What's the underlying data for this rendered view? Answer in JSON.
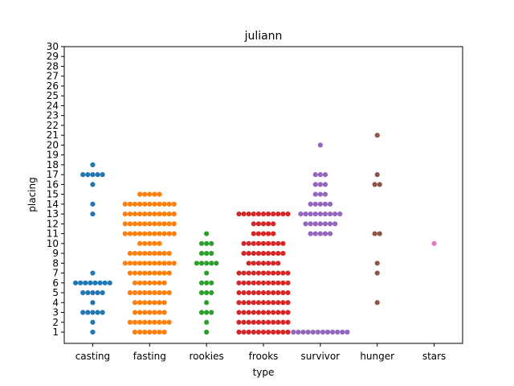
{
  "chart_data": {
    "type": "scatter",
    "title": "juliann",
    "xlabel": "type",
    "ylabel": "placing",
    "ylim": [
      0,
      30
    ],
    "categories": [
      "casting",
      "fasting",
      "rookies",
      "frooks",
      "survivor",
      "hunger",
      "stars"
    ],
    "colors": [
      "#1f77b4",
      "#ff7f0e",
      "#2ca02c",
      "#d62728",
      "#9467bd",
      "#8c564b",
      "#e377c2"
    ],
    "grid": false,
    "series": [
      {
        "category": "casting",
        "counts": {
          "1": 1,
          "2": 1,
          "3": 5,
          "4": 1,
          "5": 5,
          "6": 8,
          "7": 1,
          "13": 1,
          "14": 1,
          "16": 1,
          "17": 5,
          "18": 1
        }
      },
      {
        "category": "fasting",
        "counts": {
          "1": 7,
          "2": 9,
          "3": 7,
          "4": 7,
          "5": 9,
          "6": 7,
          "7": 9,
          "8": 11,
          "9": 9,
          "10": 5,
          "11": 11,
          "12": 11,
          "13": 11,
          "14": 11,
          "15": 5
        }
      },
      {
        "category": "rookies",
        "counts": {
          "1": 1,
          "2": 1,
          "3": 3,
          "4": 1,
          "5": 3,
          "6": 3,
          "7": 1,
          "8": 5,
          "9": 3,
          "10": 3,
          "11": 1
        }
      },
      {
        "category": "frooks",
        "counts": {
          "1": 11,
          "2": 11,
          "3": 11,
          "4": 11,
          "5": 11,
          "6": 11,
          "7": 11,
          "8": 7,
          "9": 9,
          "10": 9,
          "11": 5,
          "12": 5,
          "13": 11
        }
      },
      {
        "category": "survivor",
        "counts": {
          "1": 12,
          "11": 5,
          "12": 7,
          "13": 9,
          "14": 5,
          "15": 3,
          "16": 3,
          "17": 3,
          "20": 1
        }
      },
      {
        "category": "hunger",
        "counts": {
          "4": 1,
          "7": 1,
          "8": 1,
          "11": 2,
          "16": 2,
          "17": 1,
          "21": 1
        }
      },
      {
        "category": "stars",
        "counts": {
          "10": 1
        }
      }
    ]
  }
}
